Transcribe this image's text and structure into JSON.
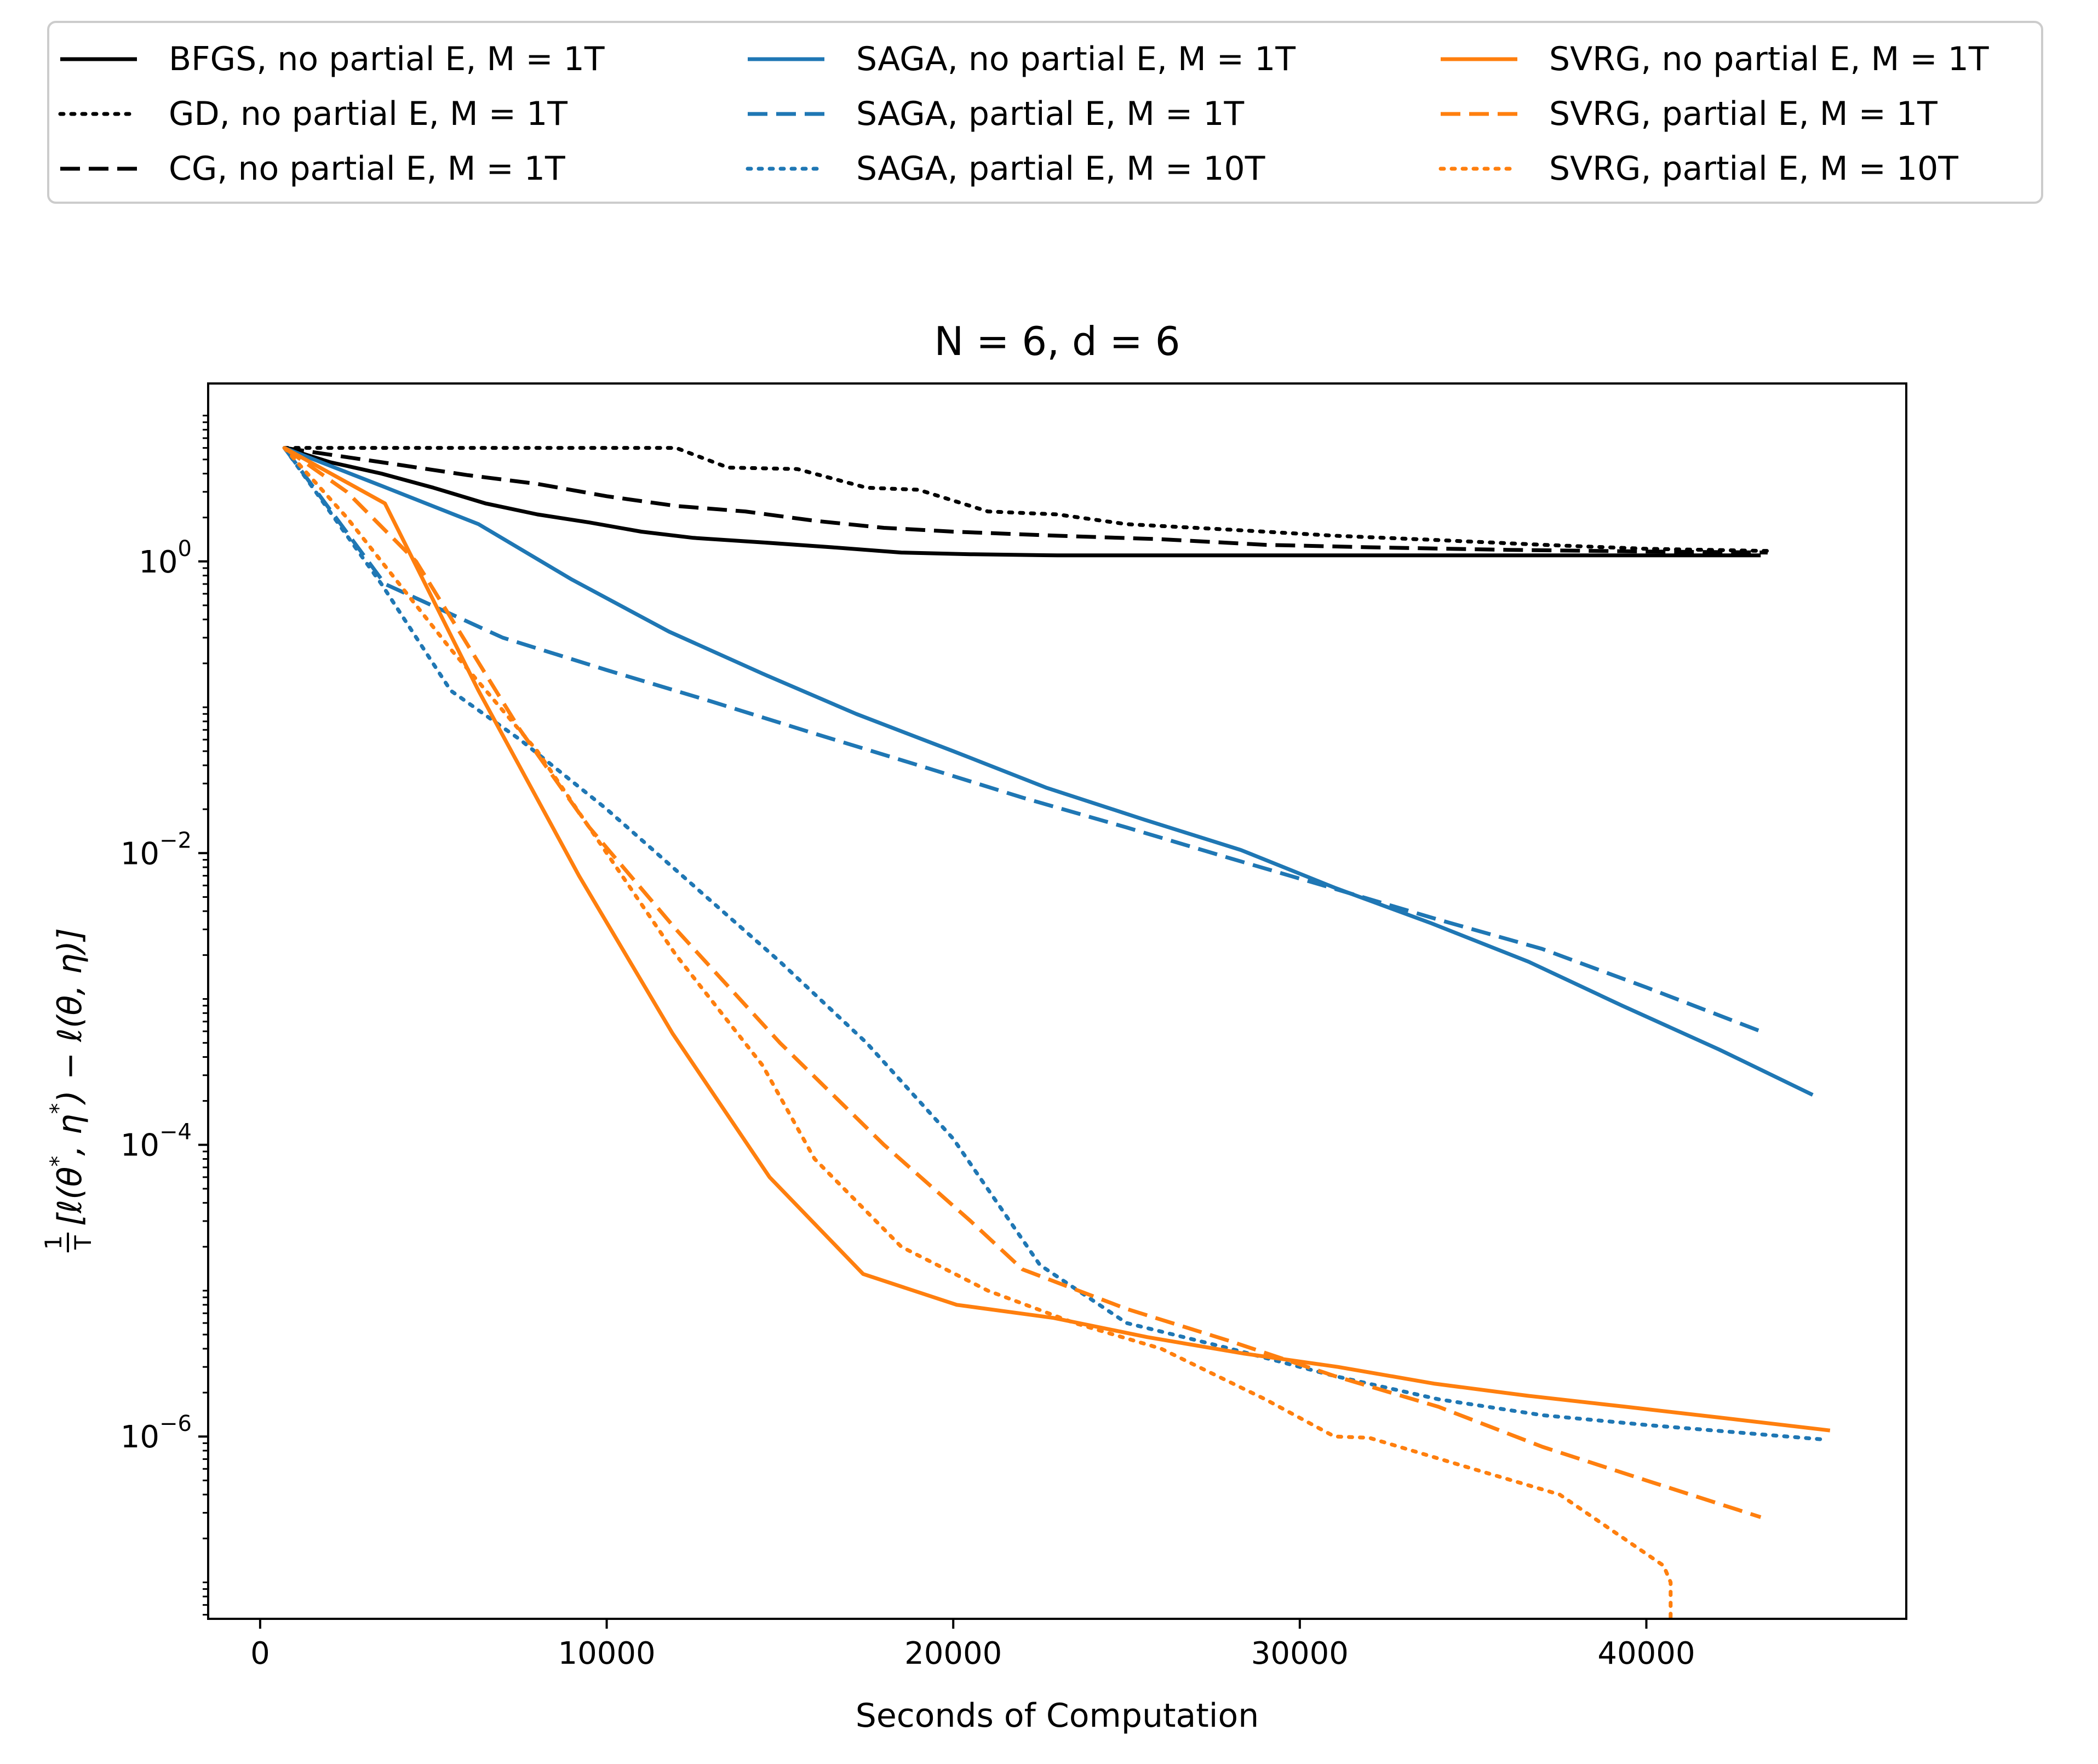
{
  "chart_data": {
    "type": "line",
    "title": "N = 6, d = 6",
    "xlabel": "Seconds of Computation",
    "ylabel": "1/T [ℓ(θ*, η*) − ℓ(θ, η)]",
    "ylabel_parts": {
      "num": "1",
      "den": "T",
      "body": "[ℓ(θ",
      "star1": "*",
      "mid": ", η",
      "star2": "*",
      "close": ") − ℓ(θ, η)]"
    },
    "yscale": "log",
    "xlim": [
      -1500,
      47500
    ],
    "ylim_log10": [
      -7.25,
      1.22
    ],
    "xticks": [
      0,
      10000,
      20000,
      30000,
      40000
    ],
    "xtick_labels": [
      "0",
      "10000",
      "20000",
      "30000",
      "40000"
    ],
    "yticks_log10": [
      0,
      -2,
      -4,
      -6
    ],
    "ytick_labels": [
      {
        "base": "10",
        "exp": "0"
      },
      {
        "base": "10",
        "exp": "−2"
      },
      {
        "base": "10",
        "exp": "−4"
      },
      {
        "base": "10",
        "exp": "−6"
      }
    ],
    "grid": false,
    "legend_position": "top, outside plot, 3 columns",
    "colors": {
      "black": "#000000",
      "blue": "#1f77b4",
      "orange": "#ff7f0e"
    },
    "series": [
      {
        "name": "BFGS, no partial E, M = 1T",
        "color": "#000000",
        "style": "solid",
        "x": [
          700,
          2000,
          3500,
          5000,
          6500,
          8000,
          9500,
          11000,
          12500,
          14500,
          16500,
          18500,
          20500,
          23000,
          26000,
          30000,
          35000,
          40000,
          43300
        ],
        "y": [
          6.0,
          4.8,
          4.0,
          3.2,
          2.5,
          2.1,
          1.85,
          1.6,
          1.45,
          1.35,
          1.25,
          1.15,
          1.12,
          1.1,
          1.1,
          1.1,
          1.1,
          1.1,
          1.1
        ]
      },
      {
        "name": "GD, no partial E, M = 1T",
        "color": "#000000",
        "style": "dotted",
        "x": [
          700,
          2000,
          4000,
          6000,
          8000,
          10000,
          12000,
          13500,
          15500,
          17500,
          19000,
          21000,
          23000,
          25000,
          28000,
          31000,
          34000,
          37000,
          40000,
          43500
        ],
        "y": [
          6.0,
          6.0,
          6.0,
          6.0,
          6.0,
          6.0,
          6.0,
          4.4,
          4.3,
          3.2,
          3.1,
          2.2,
          2.1,
          1.8,
          1.65,
          1.5,
          1.4,
          1.3,
          1.22,
          1.18
        ]
      },
      {
        "name": "CG, no partial E, M = 1T",
        "color": "#000000",
        "style": "dashed",
        "x": [
          700,
          2000,
          4000,
          6000,
          8000,
          10000,
          12000,
          14000,
          16000,
          18000,
          20000,
          23000,
          26000,
          29000,
          32000,
          36000,
          40000,
          43500
        ],
        "y": [
          6.0,
          5.4,
          4.6,
          3.9,
          3.4,
          2.8,
          2.4,
          2.2,
          1.9,
          1.7,
          1.6,
          1.5,
          1.42,
          1.3,
          1.25,
          1.2,
          1.17,
          1.15
        ]
      },
      {
        "name": "SAGA, no partial E, M = 1T",
        "color": "#1f77b4",
        "style": "solid",
        "x": [
          700,
          3500,
          6300,
          9000,
          11800,
          14500,
          17200,
          20000,
          22700,
          25500,
          28300,
          31000,
          33800,
          36600,
          39300,
          42100,
          44800
        ],
        "y": [
          6.0,
          3.3,
          1.8,
          0.75,
          0.33,
          0.17,
          0.09,
          0.05,
          0.028,
          0.017,
          0.0105,
          0.0058,
          0.0033,
          0.0018,
          0.0009,
          0.00045,
          0.00022
        ]
      },
      {
        "name": "SAGA, partial E, M = 1T",
        "color": "#1f77b4",
        "style": "dashed",
        "x": [
          700,
          3600,
          7000,
          10000,
          13000,
          16000,
          19000,
          22000,
          25000,
          28000,
          31000,
          34000,
          37000,
          40000,
          43300
        ],
        "y": [
          6.0,
          0.7,
          0.3,
          0.18,
          0.11,
          0.066,
          0.04,
          0.024,
          0.015,
          0.0092,
          0.0057,
          0.0035,
          0.0022,
          0.0012,
          0.0006
        ]
      },
      {
        "name": "SAGA, partial E, M = 10T",
        "color": "#1f77b4",
        "style": "dotted",
        "x": [
          700,
          3500,
          5500,
          7500,
          10000,
          12500,
          15000,
          17500,
          20000,
          22500,
          25000,
          28000,
          31000,
          34000,
          37000,
          40000,
          45200
        ],
        "y": [
          6.0,
          0.7,
          0.13,
          0.06,
          0.02,
          0.006,
          0.0018,
          0.0005,
          0.00011,
          1.5e-05,
          6e-06,
          4e-06,
          2.6e-06,
          1.8e-06,
          1.4e-06,
          1.2e-06,
          9.5e-07
        ]
      },
      {
        "name": "SVRG, no partial E, M = 1T",
        "color": "#ff7f0e",
        "style": "solid",
        "x": [
          700,
          3600,
          6300,
          9200,
          11900,
          14700,
          17400,
          20100,
          22900,
          25600,
          28400,
          31100,
          33900,
          36600,
          39400,
          42100,
          45300
        ],
        "y": [
          6.0,
          2.5,
          0.13,
          0.007,
          0.00058,
          6e-05,
          1.3e-05,
          8e-06,
          6.5e-06,
          4.8e-06,
          3.7e-06,
          3e-06,
          2.3e-06,
          1.9e-06,
          1.6e-06,
          1.35e-06,
          1.1e-06
        ]
      },
      {
        "name": "SVRG, partial E, M = 1T",
        "color": "#ff7f0e",
        "style": "dashed",
        "x": [
          700,
          2500,
          4500,
          7500,
          9500,
          12000,
          15000,
          18000,
          20500,
          22000,
          25000,
          28000,
          31000,
          34000,
          37000,
          40000,
          43300
        ],
        "y": [
          6.0,
          3.0,
          1.0,
          0.07,
          0.015,
          0.003,
          0.0005,
          0.0001,
          3e-05,
          1.4e-05,
          7.5e-06,
          4.5e-06,
          2.6e-06,
          1.6e-06,
          8.5e-07,
          5e-07,
          2.8e-07
        ]
      },
      {
        "name": "SVRG, partial E, M = 10T",
        "color": "#ff7f0e",
        "style": "dotted",
        "x": [
          700,
          2500,
          3500,
          5500,
          8000,
          10000,
          12000,
          14500,
          16000,
          18500,
          21000,
          23500,
          26000,
          29000,
          31000,
          32000,
          35000,
          37500,
          40500,
          40700,
          40700
        ],
        "y": [
          6.0,
          2.0,
          1.0,
          0.25,
          0.05,
          0.01,
          0.002,
          0.00035,
          8e-05,
          2e-05,
          1e-05,
          6e-06,
          4e-06,
          1.8e-06,
          1e-06,
          9.8e-07,
          6e-07,
          4e-07,
          1.3e-07,
          1e-07,
          5.6e-08
        ]
      }
    ]
  }
}
